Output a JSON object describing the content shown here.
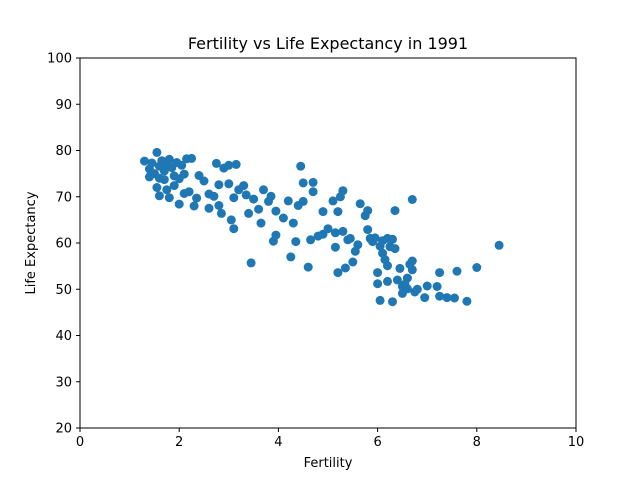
{
  "chart_data": {
    "type": "scatter",
    "title": "Fertility vs Life Expectancy in 1991",
    "xlabel": "Fertility",
    "ylabel": "Life Expectancy",
    "xlim": [
      0,
      10
    ],
    "ylim": [
      20,
      100
    ],
    "xticks": [
      0,
      2,
      4,
      6,
      8,
      10
    ],
    "yticks": [
      20,
      30,
      40,
      50,
      60,
      70,
      80,
      90,
      100
    ],
    "grid": false,
    "marker_color": "#1f77b4",
    "points": [
      [
        1.3,
        77.7
      ],
      [
        1.4,
        76.0
      ],
      [
        1.4,
        74.3
      ],
      [
        1.45,
        77.3
      ],
      [
        1.5,
        75.0
      ],
      [
        1.55,
        79.6
      ],
      [
        1.55,
        72.0
      ],
      [
        1.6,
        76.6
      ],
      [
        1.6,
        74.0
      ],
      [
        1.6,
        70.2
      ],
      [
        1.65,
        77.8
      ],
      [
        1.7,
        75.6
      ],
      [
        1.7,
        73.7
      ],
      [
        1.75,
        77.2
      ],
      [
        1.75,
        71.5
      ],
      [
        1.8,
        78.1
      ],
      [
        1.8,
        69.8
      ],
      [
        1.85,
        76.3
      ],
      [
        1.9,
        74.5
      ],
      [
        1.9,
        72.4
      ],
      [
        1.95,
        77.4
      ],
      [
        2.0,
        68.4
      ],
      [
        2.0,
        73.9
      ],
      [
        2.05,
        76.8
      ],
      [
        2.1,
        70.7
      ],
      [
        2.1,
        74.9
      ],
      [
        2.15,
        78.2
      ],
      [
        2.2,
        71.1
      ],
      [
        2.25,
        78.3
      ],
      [
        2.3,
        68.0
      ],
      [
        2.35,
        69.7
      ],
      [
        2.4,
        74.6
      ],
      [
        2.5,
        73.4
      ],
      [
        2.6,
        67.5
      ],
      [
        2.6,
        70.6
      ],
      [
        2.7,
        70.1
      ],
      [
        2.75,
        77.2
      ],
      [
        2.8,
        72.6
      ],
      [
        2.8,
        68.1
      ],
      [
        2.85,
        66.4
      ],
      [
        2.9,
        76.2
      ],
      [
        3.0,
        76.8
      ],
      [
        3.0,
        72.8
      ],
      [
        3.05,
        65.0
      ],
      [
        3.1,
        69.8
      ],
      [
        3.1,
        63.1
      ],
      [
        3.15,
        77.0
      ],
      [
        3.2,
        71.5
      ],
      [
        3.3,
        72.4
      ],
      [
        3.35,
        70.4
      ],
      [
        3.4,
        66.4
      ],
      [
        3.45,
        55.7
      ],
      [
        3.5,
        69.5
      ],
      [
        3.6,
        67.3
      ],
      [
        3.65,
        64.3
      ],
      [
        3.7,
        71.5
      ],
      [
        3.8,
        69.0
      ],
      [
        3.85,
        70.1
      ],
      [
        3.9,
        60.4
      ],
      [
        3.95,
        61.7
      ],
      [
        3.95,
        66.9
      ],
      [
        4.1,
        65.4
      ],
      [
        4.2,
        69.1
      ],
      [
        4.25,
        57.0
      ],
      [
        4.3,
        64.3
      ],
      [
        4.35,
        60.3
      ],
      [
        4.4,
        68.1
      ],
      [
        4.45,
        76.6
      ],
      [
        4.5,
        73.0
      ],
      [
        4.5,
        69.0
      ],
      [
        4.6,
        54.8
      ],
      [
        4.65,
        60.7
      ],
      [
        4.7,
        73.1
      ],
      [
        4.7,
        71.1
      ],
      [
        4.8,
        61.5
      ],
      [
        4.9,
        66.8
      ],
      [
        4.9,
        61.9
      ],
      [
        5.0,
        63.1
      ],
      [
        5.1,
        69.1
      ],
      [
        5.15,
        62.2
      ],
      [
        5.15,
        59.1
      ],
      [
        5.2,
        53.6
      ],
      [
        5.2,
        66.8
      ],
      [
        5.25,
        70.0
      ],
      [
        5.3,
        71.3
      ],
      [
        5.3,
        62.5
      ],
      [
        5.35,
        54.6
      ],
      [
        5.4,
        60.7
      ],
      [
        5.45,
        61.0
      ],
      [
        5.5,
        55.9
      ],
      [
        5.55,
        58.2
      ],
      [
        5.6,
        59.6
      ],
      [
        5.65,
        68.5
      ],
      [
        5.75,
        65.9
      ],
      [
        5.8,
        67.0
      ],
      [
        5.8,
        62.9
      ],
      [
        5.85,
        61.0
      ],
      [
        5.9,
        60.3
      ],
      [
        5.95,
        61.1
      ],
      [
        6.0,
        51.2
      ],
      [
        6.0,
        53.6
      ],
      [
        6.05,
        47.6
      ],
      [
        6.05,
        59.3
      ],
      [
        6.1,
        57.8
      ],
      [
        6.1,
        60.5
      ],
      [
        6.15,
        56.4
      ],
      [
        6.2,
        61.0
      ],
      [
        6.2,
        55.1
      ],
      [
        6.2,
        51.7
      ],
      [
        6.25,
        59.2
      ],
      [
        6.3,
        47.3
      ],
      [
        6.3,
        60.8
      ],
      [
        6.35,
        67.0
      ],
      [
        6.35,
        58.8
      ],
      [
        6.4,
        52.0
      ],
      [
        6.45,
        54.5
      ],
      [
        6.5,
        50.6
      ],
      [
        6.5,
        49.1
      ],
      [
        6.55,
        51.1
      ],
      [
        6.6,
        52.4
      ],
      [
        6.6,
        50.1
      ],
      [
        6.65,
        55.4
      ],
      [
        6.7,
        54.2
      ],
      [
        6.7,
        56.1
      ],
      [
        6.7,
        69.4
      ],
      [
        6.75,
        49.4
      ],
      [
        6.8,
        50.0
      ],
      [
        6.95,
        48.2
      ],
      [
        7.0,
        50.7
      ],
      [
        7.2,
        50.6
      ],
      [
        7.25,
        48.5
      ],
      [
        7.25,
        53.6
      ],
      [
        7.4,
        48.2
      ],
      [
        7.55,
        48.1
      ],
      [
        7.6,
        53.9
      ],
      [
        7.8,
        47.4
      ],
      [
        8.0,
        54.7
      ],
      [
        8.45,
        59.5
      ]
    ]
  }
}
